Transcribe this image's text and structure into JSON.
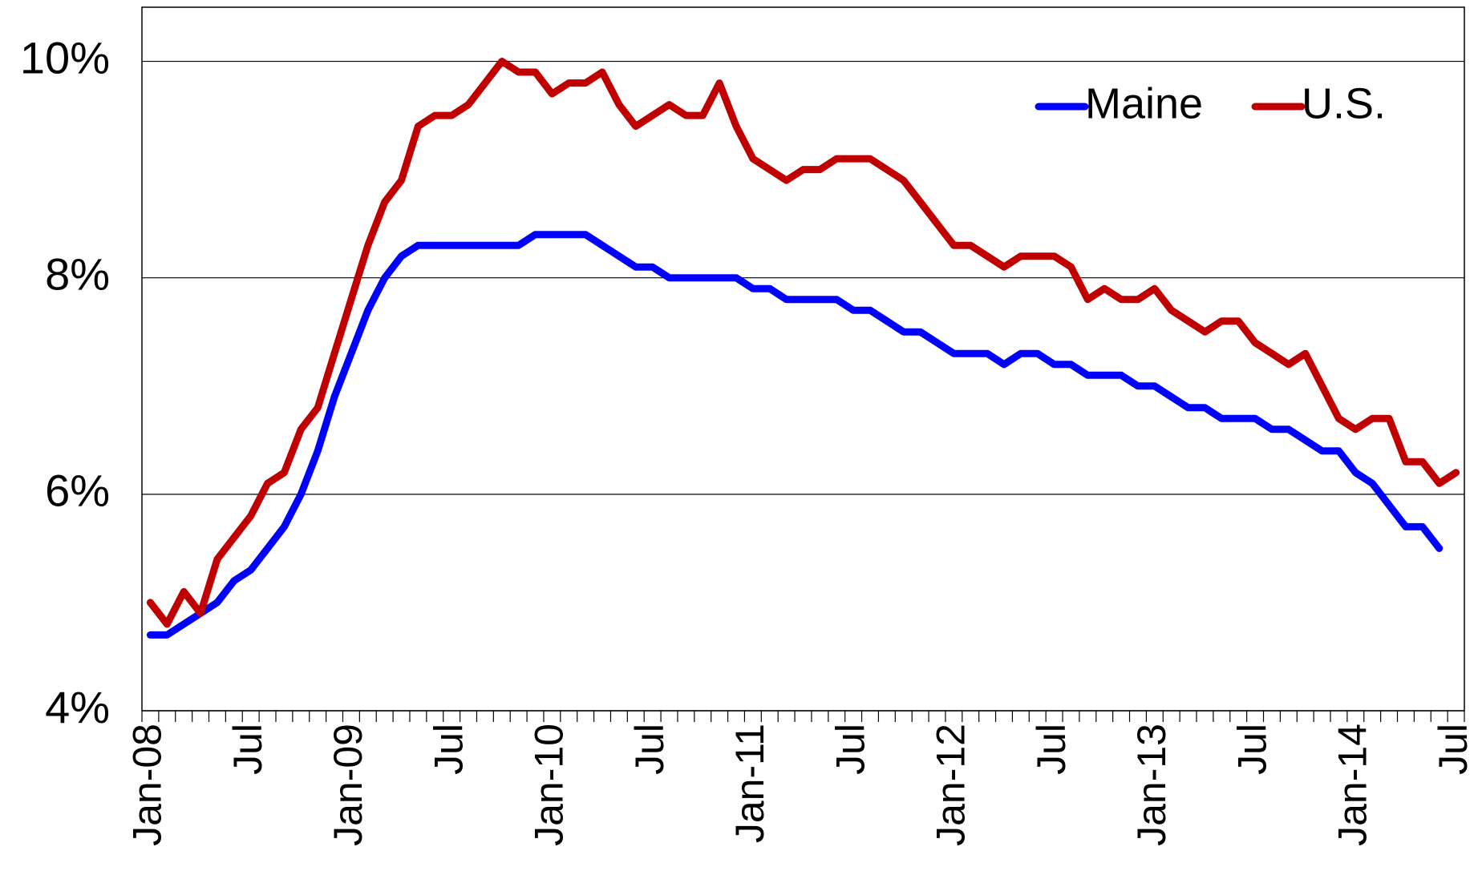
{
  "chart_data": {
    "type": "line",
    "categories": [
      "Jan-08",
      null,
      null,
      null,
      null,
      null,
      "Jul",
      null,
      null,
      null,
      null,
      null,
      "Jan-09",
      null,
      null,
      null,
      null,
      null,
      "Jul",
      null,
      null,
      null,
      null,
      null,
      "Jan-10",
      null,
      null,
      null,
      null,
      null,
      "Jul",
      null,
      null,
      null,
      null,
      null,
      "Jan-11",
      null,
      null,
      null,
      null,
      null,
      "Jul",
      null,
      null,
      null,
      null,
      null,
      "Jan-12",
      null,
      null,
      null,
      null,
      null,
      "Jul",
      null,
      null,
      null,
      null,
      null,
      "Jan-13",
      null,
      null,
      null,
      null,
      null,
      "Jul",
      null,
      null,
      null,
      null,
      null,
      "Jan-14",
      null,
      null,
      null,
      null,
      null,
      "Jul"
    ],
    "series": [
      {
        "name": "Maine",
        "color": "#0000ff",
        "values": [
          4.7,
          4.7,
          4.8,
          4.9,
          5.0,
          5.2,
          5.3,
          5.5,
          5.7,
          6.0,
          6.4,
          6.9,
          7.3,
          7.7,
          8.0,
          8.2,
          8.3,
          8.3,
          8.3,
          8.3,
          8.3,
          8.3,
          8.3,
          8.4,
          8.4,
          8.4,
          8.4,
          8.3,
          8.2,
          8.1,
          8.1,
          8.0,
          8.0,
          8.0,
          8.0,
          8.0,
          7.9,
          7.9,
          7.8,
          7.8,
          7.8,
          7.8,
          7.7,
          7.7,
          7.6,
          7.5,
          7.5,
          7.4,
          7.3,
          7.3,
          7.3,
          7.2,
          7.3,
          7.3,
          7.2,
          7.2,
          7.1,
          7.1,
          7.1,
          7.0,
          7.0,
          6.9,
          6.8,
          6.8,
          6.7,
          6.7,
          6.7,
          6.6,
          6.6,
          6.5,
          6.4,
          6.4,
          6.2,
          6.1,
          5.9,
          5.7,
          5.7,
          5.5,
          null
        ]
      },
      {
        "name": "U.S.",
        "color": "#c00000",
        "values": [
          5.0,
          4.8,
          5.1,
          4.9,
          5.4,
          5.6,
          5.8,
          6.1,
          6.2,
          6.6,
          6.8,
          7.3,
          7.8,
          8.3,
          8.7,
          8.9,
          9.4,
          9.5,
          9.5,
          9.6,
          9.8,
          10.0,
          9.9,
          9.9,
          9.7,
          9.8,
          9.8,
          9.9,
          9.6,
          9.4,
          9.5,
          9.6,
          9.5,
          9.5,
          9.8,
          9.4,
          9.1,
          9.0,
          8.9,
          9.0,
          9.0,
          9.1,
          9.1,
          9.1,
          9.0,
          8.9,
          8.7,
          8.5,
          8.3,
          8.3,
          8.2,
          8.1,
          8.2,
          8.2,
          8.2,
          8.1,
          7.8,
          7.9,
          7.8,
          7.8,
          7.9,
          7.7,
          7.6,
          7.5,
          7.6,
          7.6,
          7.4,
          7.3,
          7.2,
          7.3,
          7.0,
          6.7,
          6.6,
          6.7,
          6.7,
          6.3,
          6.3,
          6.1,
          6.2
        ]
      }
    ],
    "ylim": [
      4,
      10.5
    ],
    "yticks": [
      {
        "value": 4,
        "label": "4%"
      },
      {
        "value": 6,
        "label": "6%"
      },
      {
        "value": 8,
        "label": "8%"
      },
      {
        "value": 10,
        "label": "10%"
      }
    ],
    "grid": true
  }
}
